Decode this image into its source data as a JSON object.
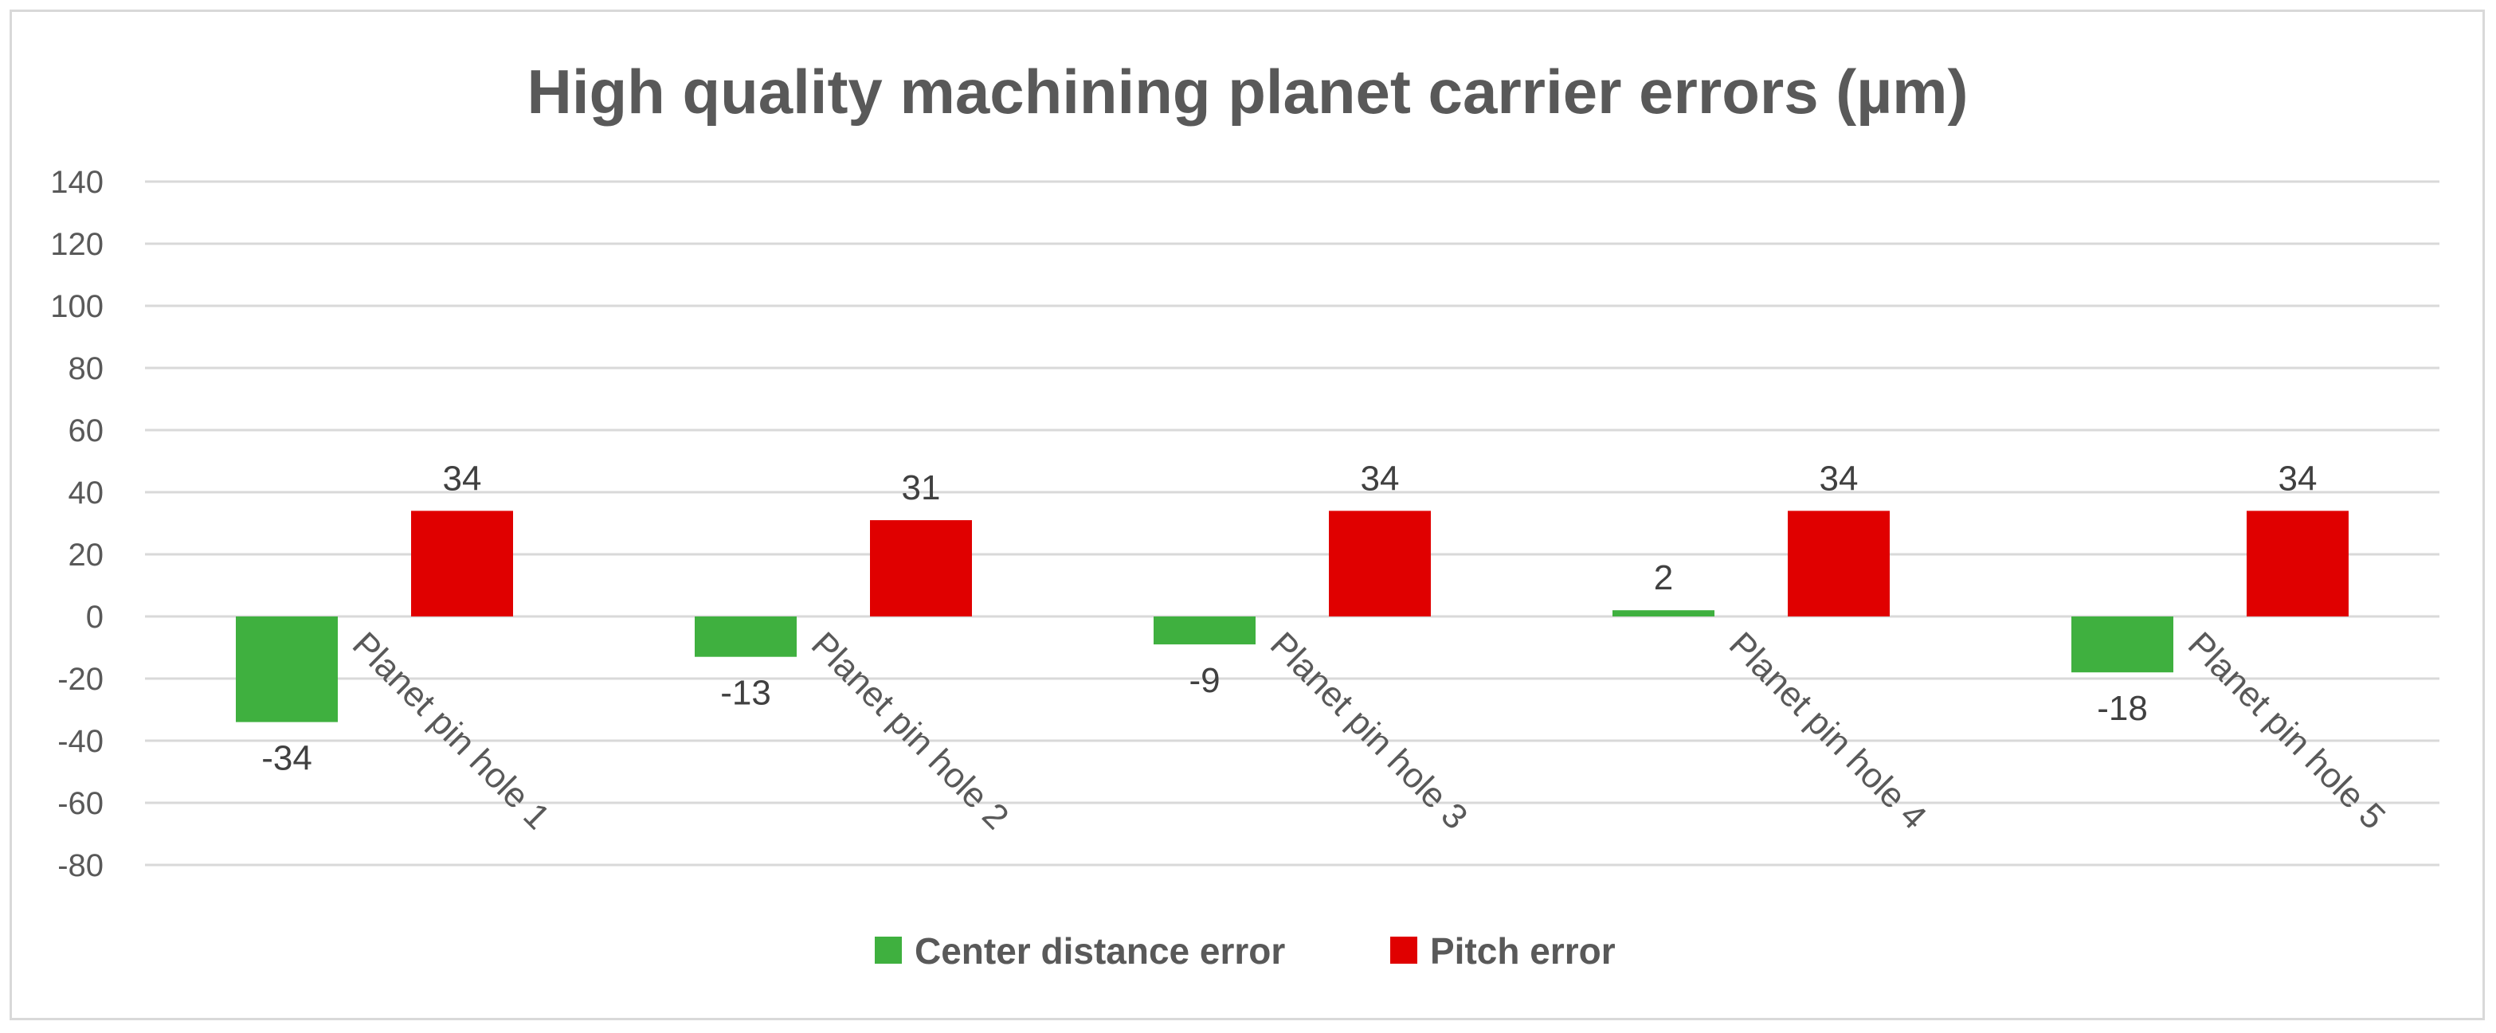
{
  "chart_data": {
    "type": "bar",
    "title": "High quality machining planet carrier errors (µm)",
    "xlabel": "",
    "ylabel": "",
    "categories": [
      "Planet pin hole 1",
      "Planet pin hole 2",
      "Planet pin hole 3",
      "Planet pin hole 4",
      "Planet pin hole 5"
    ],
    "series": [
      {
        "name": "Center distance error",
        "color": "#3fb03f",
        "values": [
          -34,
          -13,
          -9,
          2,
          -18
        ]
      },
      {
        "name": "Pitch error",
        "color": "#e00000",
        "values": [
          34,
          31,
          34,
          34,
          34
        ]
      }
    ],
    "ylim": [
      -80,
      140
    ],
    "yticks": [
      140,
      120,
      100,
      80,
      60,
      40,
      20,
      0,
      -20,
      -40,
      -60,
      -80
    ],
    "grid": true,
    "legend_position": "bottom"
  }
}
